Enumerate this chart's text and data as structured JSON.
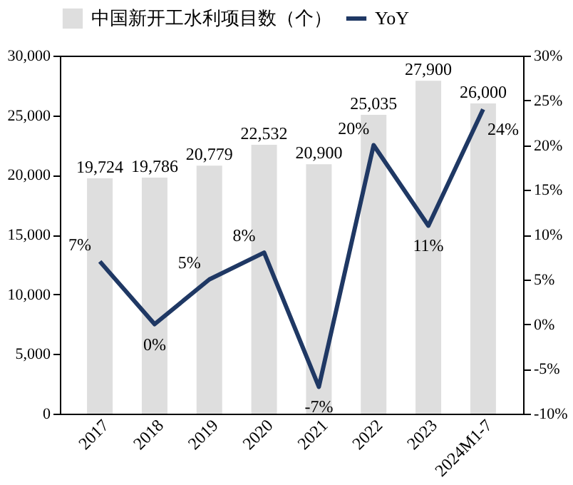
{
  "chart_data": {
    "type": "bar",
    "categories": [
      "2017",
      "2018",
      "2019",
      "2020",
      "2021",
      "2022",
      "2023",
      "2024M1-7"
    ],
    "series": [
      {
        "name": "中国新开工水利项目数（个）",
        "color": "#dedede",
        "values": [
          19724,
          19786,
          20779,
          22532,
          20900,
          25035,
          27900,
          26000
        ],
        "value_labels": [
          "19,724",
          "19,786",
          "20,779",
          "22,532",
          "20,900",
          "25,035",
          "27,900",
          "26,000"
        ]
      },
      {
        "name": "YoY",
        "type": "line",
        "axis": "y2",
        "color": "#1f3864",
        "values": [
          7,
          0,
          5,
          8,
          -7,
          20,
          11,
          24
        ],
        "value_labels": [
          "7%",
          "0%",
          "5%",
          "8%",
          "-7%",
          "20%",
          "11%",
          "24%"
        ]
      }
    ],
    "ylim": [
      0,
      30000
    ],
    "yticks": [
      {
        "value": 0,
        "label": "0"
      },
      {
        "value": 5000,
        "label": "5,000"
      },
      {
        "value": 10000,
        "label": "10,000"
      },
      {
        "value": 15000,
        "label": "15,000"
      },
      {
        "value": 20000,
        "label": "20,000"
      },
      {
        "value": 25000,
        "label": "25,000"
      },
      {
        "value": 30000,
        "label": "30,000"
      }
    ],
    "y2lim": [
      -10,
      30
    ],
    "y2ticks": [
      {
        "value": -10,
        "label": "-10%"
      },
      {
        "value": -5,
        "label": "-5%"
      },
      {
        "value": 0,
        "label": "0%"
      },
      {
        "value": 5,
        "label": "5%"
      },
      {
        "value": 10,
        "label": "10%"
      },
      {
        "value": 15,
        "label": "15%"
      },
      {
        "value": 20,
        "label": "20%"
      },
      {
        "value": 25,
        "label": "25%"
      },
      {
        "value": 30,
        "label": "30%"
      }
    ],
    "grid": false,
    "legend": "top",
    "marker": "none",
    "line_style": "solid"
  }
}
